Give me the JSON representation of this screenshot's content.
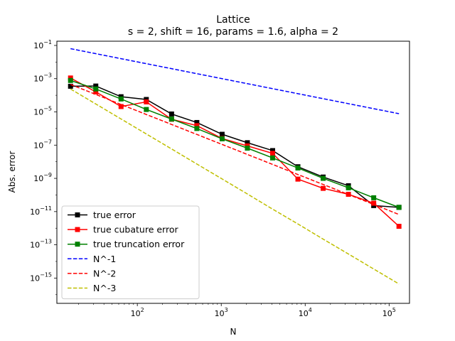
{
  "chart_data": {
    "type": "line",
    "title": "Lattice",
    "subtitle": "s = 2, shift = 16, params = 1.6, alpha = 2",
    "xlabel": "N",
    "ylabel": "Abs. error",
    "xscale": "log",
    "yscale": "log",
    "xlim": [
      11,
      175000
    ],
    "ylim": [
      3e-17,
      0.18
    ],
    "x_ticks": [
      {
        "value": 100,
        "label": "10",
        "exp": "2"
      },
      {
        "value": 1000,
        "label": "10",
        "exp": "3"
      },
      {
        "value": 10000,
        "label": "10",
        "exp": "4"
      },
      {
        "value": 100000,
        "label": "10",
        "exp": "5"
      }
    ],
    "y_ticks": [
      {
        "value": 1e-15,
        "label": "10",
        "exp": "−15"
      },
      {
        "value": 1e-13,
        "label": "10",
        "exp": "−13"
      },
      {
        "value": 1e-11,
        "label": "10",
        "exp": "−11"
      },
      {
        "value": 1e-09,
        "label": "10",
        "exp": "−9"
      },
      {
        "value": 1e-07,
        "label": "10",
        "exp": "−7"
      },
      {
        "value": 1e-05,
        "label": "10",
        "exp": "−5"
      },
      {
        "value": 0.001,
        "label": "10",
        "exp": "−3"
      },
      {
        "value": 0.1,
        "label": "10",
        "exp": "−1"
      }
    ],
    "grid": false,
    "legend_position": "lower-left",
    "x": [
      16,
      32,
      64,
      128,
      256,
      512,
      1024,
      2048,
      4096,
      8192,
      16384,
      32768,
      65536,
      131072
    ],
    "series": [
      {
        "name": "true error",
        "color": "#000000",
        "style": "solid",
        "marker": "square",
        "values": [
          0.00035,
          0.00036,
          8.2e-05,
          5.6e-05,
          7.5e-06,
          2.3e-06,
          4.5e-07,
          1.4e-07,
          4.7e-08,
          5e-09,
          1.2e-09,
          3.6e-10,
          2.3e-11,
          1.8e-11
        ]
      },
      {
        "name": "true cubature error",
        "color": "#ff0000",
        "style": "solid",
        "marker": "square",
        "values": [
          0.0011,
          0.00016,
          2.1e-05,
          4e-05,
          3.6e-06,
          1.5e-06,
          2.5e-07,
          9e-08,
          3.2e-08,
          9e-10,
          2.5e-10,
          1.1e-10,
          3.2e-11,
          1.3e-12
        ]
      },
      {
        "name": "true truncation error",
        "color": "#008000",
        "style": "solid",
        "marker": "square",
        "values": [
          0.00078,
          0.00024,
          6e-05,
          1.4e-05,
          3.7e-06,
          1e-06,
          2.4e-07,
          6.6e-08,
          1.7e-08,
          4.2e-09,
          1e-09,
          2.7e-10,
          6.8e-11,
          1.8e-11
        ]
      },
      {
        "name": "N^-1",
        "color": "#0000ff",
        "style": "dashed",
        "marker": "none",
        "values": [
          0.064,
          0.032,
          0.016,
          0.008,
          0.004,
          0.002,
          0.001,
          0.0005,
          0.00025,
          0.000125,
          6.25e-05,
          3.125e-05,
          1.5625e-05,
          7.8125e-06
        ]
      },
      {
        "name": "N^-2",
        "color": "#ff0000",
        "style": "dashed",
        "marker": "none",
        "values": [
          0.00045,
          0.0001125,
          2.8e-05,
          7e-06,
          1.76e-06,
          4.4e-07,
          1.1e-07,
          2.75e-08,
          6.9e-09,
          1.7e-09,
          4.3e-10,
          1.07e-10,
          2.7e-11,
          6.7e-12
        ]
      },
      {
        "name": "N^-3",
        "color": "#bfbf00",
        "style": "dashed",
        "marker": "none",
        "values": [
          0.00024,
          3e-05,
          3.75e-06,
          4.7e-07,
          5.9e-08,
          7.3e-09,
          9.2e-10,
          1.15e-10,
          1.4e-11,
          1.8e-12,
          2.2e-13,
          2.8e-14,
          3.5e-15,
          4.4e-16
        ]
      }
    ]
  }
}
